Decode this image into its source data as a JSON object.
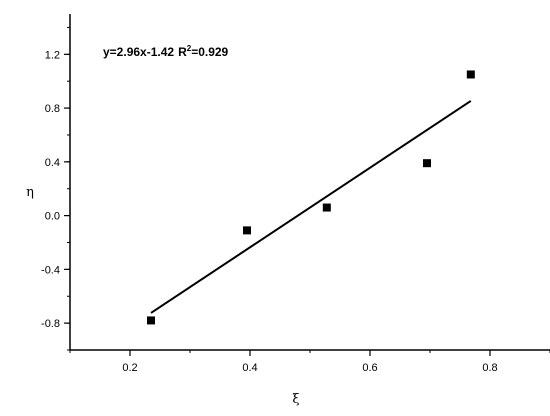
{
  "chart_data": {
    "type": "scatter",
    "title": "",
    "xlabel": "ξ",
    "ylabel": "η",
    "xlim": [
      0.1,
      0.9
    ],
    "ylim": [
      -1.0,
      1.5
    ],
    "xticks": [
      0.2,
      0.4,
      0.6,
      0.8
    ],
    "xtick_labels": [
      "0.2",
      "0.4",
      "0.6",
      "0.8"
    ],
    "yticks": [
      -0.8,
      -0.4,
      0.0,
      0.4,
      0.8,
      1.2
    ],
    "ytick_labels": [
      "-0.8",
      "-0.4",
      "0.0",
      "0.4",
      "0.8",
      "1.2"
    ],
    "grid": false,
    "points": [
      {
        "x": 0.235,
        "y": -0.78
      },
      {
        "x": 0.395,
        "y": -0.11
      },
      {
        "x": 0.528,
        "y": 0.06
      },
      {
        "x": 0.695,
        "y": 0.39
      },
      {
        "x": 0.768,
        "y": 1.05
      }
    ],
    "fit": {
      "slope": 2.96,
      "intercept": -1.42,
      "x_start": 0.235,
      "x_end": 0.768
    },
    "annotation_eq": "y=2.96x-1.42",
    "annotation_r_prefix": "R",
    "annotation_r_sup": "2",
    "annotation_r_value": "=0.929",
    "marker_color": "#000000"
  }
}
